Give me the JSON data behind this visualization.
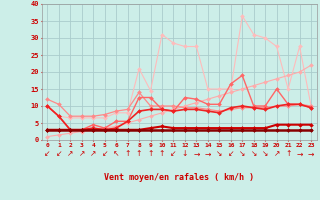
{
  "x": [
    0,
    1,
    2,
    3,
    4,
    5,
    6,
    7,
    8,
    9,
    10,
    11,
    12,
    13,
    14,
    15,
    16,
    17,
    18,
    19,
    20,
    21,
    22,
    23
  ],
  "background_color": "#cceee8",
  "grid_color": "#aacccc",
  "xlabel": "Vent moyen/en rafales ( km/h )",
  "xlabel_color": "#cc0000",
  "tick_color": "#cc0000",
  "series": [
    {
      "name": "s1_lightest_diagonal",
      "color": "#ffbbbb",
      "linewidth": 0.8,
      "marker": "D",
      "markersize": 2,
      "values": [
        10.0,
        7.0,
        6.5,
        6.5,
        6.5,
        6.5,
        8.0,
        8.0,
        21.0,
        14.5,
        31.0,
        28.5,
        27.5,
        27.5,
        15.0,
        15.0,
        15.0,
        36.5,
        31.0,
        30.0,
        27.5,
        15.0,
        27.5,
        10.0
      ]
    },
    {
      "name": "s2_light_rising",
      "color": "#ffaaaa",
      "linewidth": 0.8,
      "marker": "D",
      "markersize": 2,
      "values": [
        1.0,
        1.5,
        2.0,
        2.5,
        3.0,
        3.5,
        4.0,
        5.0,
        6.0,
        7.0,
        8.0,
        9.0,
        10.0,
        11.0,
        12.0,
        13.0,
        14.0,
        15.0,
        16.0,
        17.0,
        18.0,
        19.0,
        20.0,
        22.0
      ]
    },
    {
      "name": "s3_pink_bumpy",
      "color": "#ff8888",
      "linewidth": 0.9,
      "marker": "D",
      "markersize": 2,
      "values": [
        12.0,
        10.5,
        7.0,
        7.0,
        7.0,
        7.5,
        8.5,
        9.0,
        14.0,
        10.0,
        10.0,
        10.0,
        9.5,
        9.5,
        9.0,
        8.5,
        9.0,
        9.5,
        9.5,
        9.5,
        10.0,
        10.0,
        10.5,
        10.0
      ]
    },
    {
      "name": "s4_medium_bumpy",
      "color": "#ff6666",
      "linewidth": 1.0,
      "marker": "D",
      "markersize": 2,
      "values": [
        10.0,
        7.0,
        3.0,
        3.0,
        4.5,
        3.5,
        5.5,
        5.5,
        12.5,
        12.5,
        9.0,
        8.5,
        12.5,
        12.0,
        10.5,
        10.5,
        16.5,
        19.0,
        10.0,
        10.0,
        15.0,
        10.5,
        10.5,
        9.5
      ]
    },
    {
      "name": "s5_red_spiky",
      "color": "#ee2222",
      "linewidth": 1.2,
      "marker": "D",
      "markersize": 2,
      "values": [
        10.0,
        7.0,
        3.0,
        3.0,
        3.5,
        3.0,
        3.5,
        5.5,
        8.5,
        9.0,
        9.0,
        8.5,
        9.0,
        9.0,
        8.5,
        8.0,
        9.5,
        10.0,
        9.5,
        9.0,
        10.0,
        10.5,
        10.5,
        9.5
      ]
    },
    {
      "name": "s6_darkred_flat",
      "color": "#cc0000",
      "linewidth": 1.5,
      "marker": "D",
      "markersize": 2,
      "values": [
        3.0,
        3.0,
        3.0,
        3.0,
        3.0,
        3.0,
        3.0,
        3.0,
        3.0,
        3.5,
        4.0,
        3.5,
        3.5,
        3.5,
        3.5,
        3.5,
        3.5,
        3.5,
        3.5,
        3.5,
        4.5,
        4.5,
        4.5,
        4.5
      ]
    },
    {
      "name": "s7_vdark_flat",
      "color": "#880000",
      "linewidth": 1.8,
      "marker": "D",
      "markersize": 2,
      "values": [
        3.0,
        3.0,
        3.0,
        3.0,
        3.0,
        3.0,
        3.0,
        3.0,
        3.0,
        3.0,
        3.0,
        3.0,
        3.0,
        3.0,
        3.0,
        3.0,
        3.0,
        3.0,
        3.0,
        3.0,
        3.0,
        3.0,
        3.0,
        3.0
      ]
    }
  ],
  "wind_arrows": [
    "↙",
    "↙",
    "↗",
    "↗",
    "↗",
    "↙",
    "↖",
    "↑",
    "↑",
    "↑",
    "↑",
    "↙",
    "↓",
    "→",
    "→",
    "↘",
    "↙",
    "↘",
    "↘",
    "↘",
    "↗",
    "↑",
    "→",
    "→"
  ],
  "ylim": [
    0,
    40
  ],
  "yticks": [
    0,
    5,
    10,
    15,
    20,
    25,
    30,
    35,
    40
  ]
}
